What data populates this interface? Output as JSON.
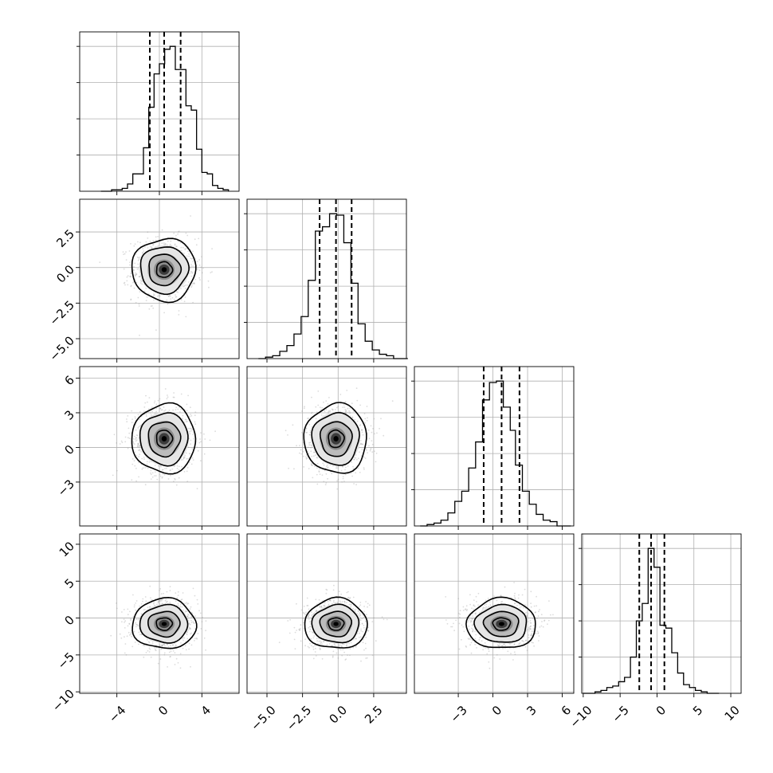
{
  "chart_data": {
    "type": "corner",
    "parameters": [
      {
        "range": [
          -7.5,
          7.5
        ],
        "ticks": [
          -4,
          0,
          4
        ],
        "tick_labels": [
          "−4",
          "0",
          "4"
        ],
        "quantiles": [
          -0.9,
          0.45,
          2.0
        ],
        "mean": 0.45,
        "sigma": 1.5
      },
      {
        "range": [
          -6.4,
          4.8
        ],
        "ticks": [
          -5.0,
          -2.5,
          0.0,
          2.5
        ],
        "tick_labels": [
          "−5.0",
          "−2.5",
          "0.0",
          "2.5"
        ],
        "quantiles": [
          -1.3,
          -0.15,
          0.95
        ],
        "mean": -0.15,
        "sigma": 1.1
      },
      {
        "range": [
          -6.8,
          7.0
        ],
        "ticks": [
          -3,
          0,
          3,
          6
        ],
        "tick_labels": [
          "−3",
          "0",
          "3",
          "6"
        ],
        "quantiles": [
          -0.8,
          0.75,
          2.3
        ],
        "mean": 0.75,
        "sigma": 1.5
      },
      {
        "range": [
          -10.2,
          11.4
        ],
        "ticks": [
          -10,
          -5,
          0,
          5,
          10
        ],
        "tick_labels": [
          "−10",
          "−5",
          "0",
          "5",
          "10"
        ],
        "quantiles": [
          -2.4,
          -0.8,
          1.0
        ],
        "mean": -0.8,
        "sigma": 1.7
      }
    ],
    "histograms": [
      {
        "bins": [
          -5.5,
          -5.0,
          -4.5,
          -4.0,
          -3.5,
          -3.0,
          -2.5,
          -2.0,
          -1.5,
          -1.0,
          -0.5,
          0.0,
          0.5,
          1.0,
          1.5,
          2.0,
          2.5,
          3.0,
          3.5,
          4.0,
          4.5,
          5.0,
          5.5,
          6.0,
          6.5
        ],
        "counts": [
          0.0,
          0.0,
          0.01,
          0.01,
          0.02,
          0.05,
          0.12,
          0.12,
          0.3,
          0.58,
          0.81,
          0.88,
          0.98,
          1.0,
          0.84,
          0.84,
          0.59,
          0.56,
          0.29,
          0.13,
          0.12,
          0.04,
          0.02,
          0.01
        ]
      },
      {
        "bins": [
          -5.6,
          -5.1,
          -4.6,
          -4.1,
          -3.6,
          -3.1,
          -2.6,
          -2.1,
          -1.6,
          -1.1,
          -0.6,
          -0.1,
          0.4,
          0.9,
          1.4,
          1.9,
          2.4,
          2.9,
          3.4,
          3.9,
          4.4,
          4.9
        ],
        "counts": [
          0.0,
          0.01,
          0.02,
          0.05,
          0.09,
          0.17,
          0.29,
          0.54,
          0.88,
          0.91,
          1.0,
          0.99,
          0.8,
          0.52,
          0.24,
          0.12,
          0.06,
          0.03,
          0.02,
          0.0,
          0.0
        ]
      },
      {
        "bins": [
          -6.3,
          -5.7,
          -5.1,
          -4.5,
          -3.9,
          -3.3,
          -2.7,
          -2.1,
          -1.5,
          -0.9,
          -0.3,
          0.3,
          0.9,
          1.5,
          1.95,
          2.55,
          3.15,
          3.75,
          4.35,
          4.95,
          5.55,
          6.15,
          6.75
        ],
        "counts": [
          0.0,
          0.01,
          0.02,
          0.04,
          0.09,
          0.17,
          0.24,
          0.4,
          0.58,
          0.87,
          0.99,
          1.0,
          0.82,
          0.66,
          0.42,
          0.24,
          0.15,
          0.08,
          0.04,
          0.03,
          0.0,
          0.0
        ]
      },
      {
        "bins": [
          -10.0,
          -9.2,
          -8.4,
          -7.6,
          -6.8,
          -6.0,
          -5.2,
          -4.4,
          -3.6,
          -2.8,
          -2.0,
          -1.2,
          -0.4,
          0.4,
          1.2,
          2.0,
          2.8,
          3.6,
          4.4,
          5.2,
          6.0,
          6.8,
          7.6,
          8.4
        ],
        "counts": [
          0.0,
          0.0,
          0.01,
          0.02,
          0.04,
          0.05,
          0.08,
          0.11,
          0.25,
          0.5,
          0.62,
          1.0,
          0.87,
          0.47,
          0.45,
          0.28,
          0.14,
          0.06,
          0.04,
          0.02,
          0.01,
          0.0,
          0.0
        ]
      }
    ],
    "contour_levels": [
      0.5,
      1.0,
      1.5,
      2.0
    ],
    "grid": true
  }
}
